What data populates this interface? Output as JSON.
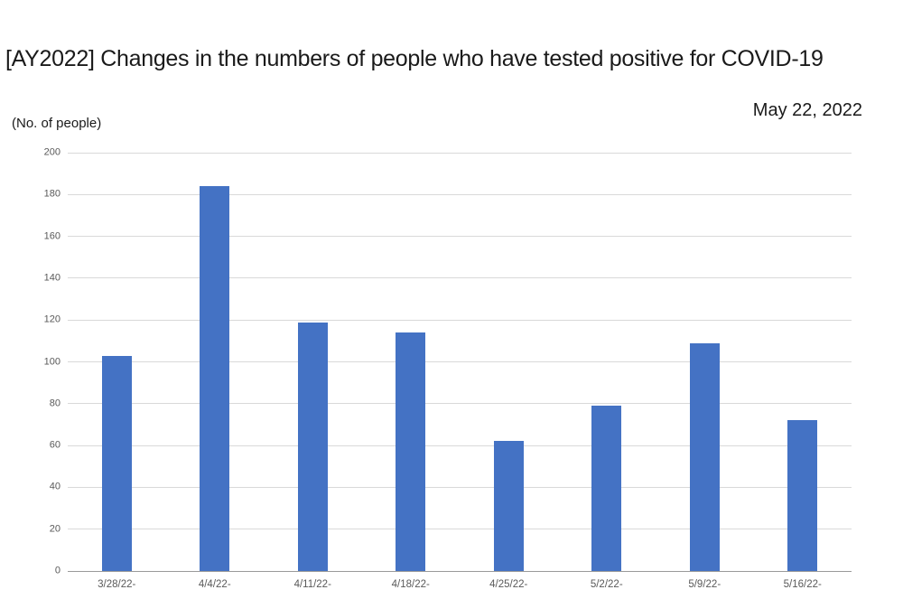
{
  "chart_data": {
    "type": "bar",
    "title": "[AY2022] Changes in the numbers of people who have tested positive for COVID-19",
    "date_label": "May 22, 2022",
    "unit_label": "(No. of people)",
    "categories": [
      "3/28/22-",
      "4/4/22-",
      "4/11/22-",
      "4/18/22-",
      "4/25/22-",
      "5/2/22-",
      "5/9/22-",
      "5/16/22-"
    ],
    "values": [
      103,
      184,
      119,
      114,
      62,
      79,
      109,
      72
    ],
    "xlabel": "",
    "ylabel": "",
    "ylim": [
      0,
      200
    ],
    "yticks": [
      0,
      20,
      40,
      60,
      80,
      100,
      120,
      140,
      160,
      180,
      200
    ],
    "grid": true,
    "legend_position": "none",
    "colors": {
      "bar": "#4472C4",
      "gridline": "#d9d9d9",
      "axis_line": "#9a9a9a",
      "tick_label": "#595959",
      "title_text": "#1a1a1a"
    }
  }
}
